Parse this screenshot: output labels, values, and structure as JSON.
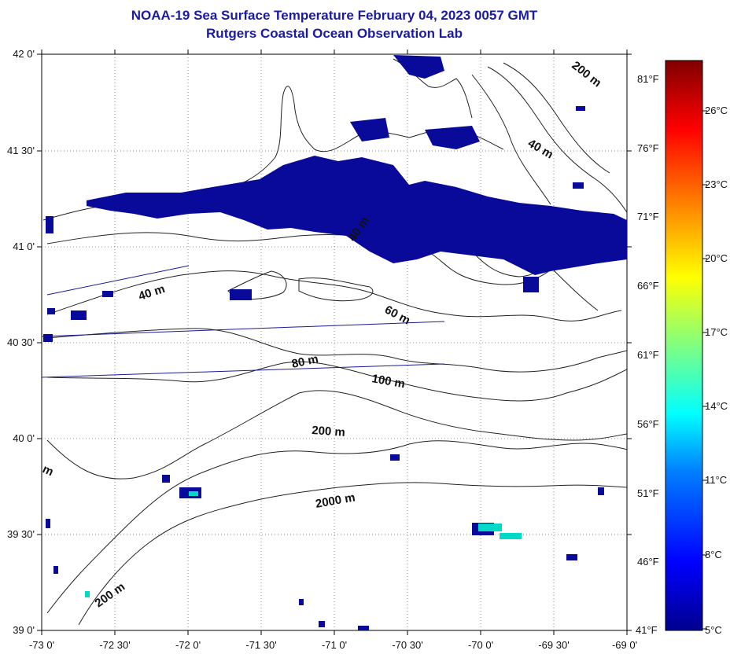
{
  "title": "NOAA-19 Sea Surface Temperature February 04, 2023 0057 GMT",
  "subtitle": "Rutgers Coastal Ocean Observation Lab",
  "lat_labels": [
    "42 0'",
    "41 30'",
    "41 0'",
    "40 30'",
    "40 0'",
    "39 30'",
    "39 0'"
  ],
  "lon_labels": [
    "-73 0'",
    "-72 30'",
    "-72 0'",
    "-71 30'",
    "-71 0'",
    "-70 30'",
    "-70 0'",
    "-69 30'",
    "-69 0'"
  ],
  "fahrenheit_labels": [
    "81°F",
    "76°F",
    "71°F",
    "66°F",
    "61°F",
    "56°F",
    "51°F",
    "46°F",
    "41°F"
  ],
  "celsius_labels": [
    "26°C",
    "23°C",
    "20°C",
    "17°C",
    "14°C",
    "11°C",
    "8°C",
    "5°C"
  ],
  "contour_labels": [
    "200 m",
    "40 m",
    "40 m",
    "40 m",
    "60 m",
    "80 m",
    "100 m",
    "200 m",
    "2000 m",
    "200 m",
    "m"
  ],
  "colors": {
    "title": "#1a1aa6",
    "sst_cold": "#0a0a9a",
    "sst_warm": "#00d8c8",
    "contour": "#222222",
    "track": "#1a1a9a"
  }
}
